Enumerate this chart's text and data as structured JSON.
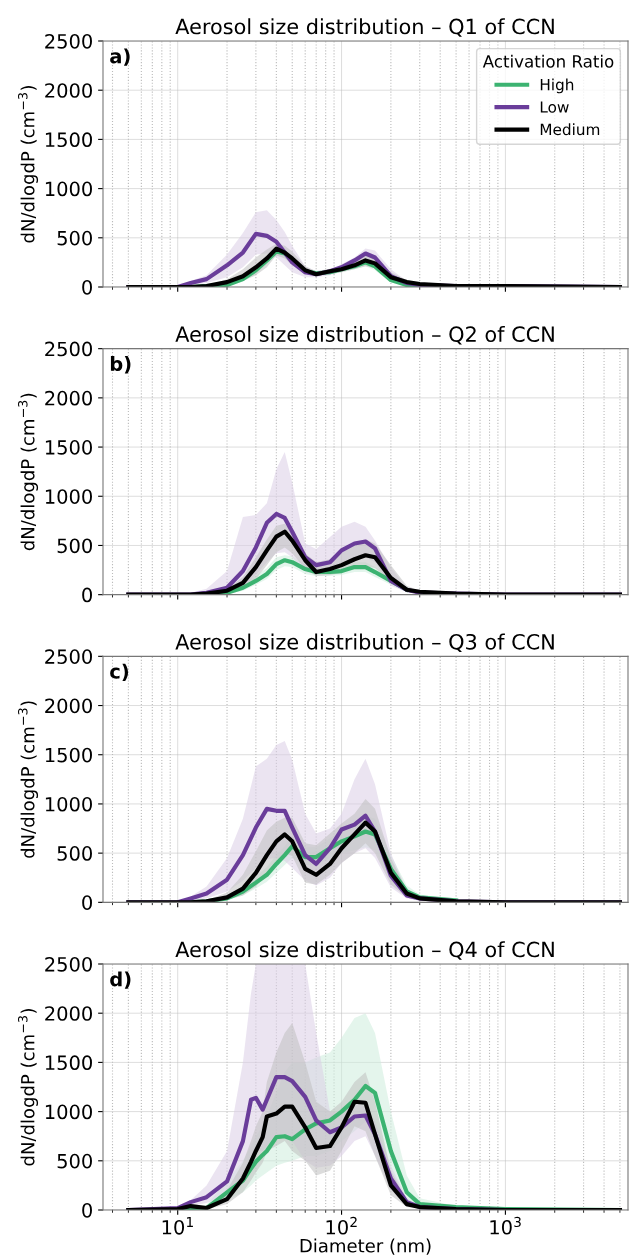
{
  "chart_data": [
    {
      "type": "line",
      "title": "Aerosol size distribution – Q1 of CCN",
      "ylabel": "dN/dlogdP (cm$^{−3}$)",
      "annotations": [
        "a)"
      ],
      "log": "x",
      "grid": true,
      "legend": "top right",
      "legend_title": "Activation Ratio",
      "tick_labels": "y",
      "line_style": "solid",
      "xlim": [
        3.5,
        5600
      ],
      "xticks": [
        10,
        100,
        1000
      ],
      "ylim": [
        0,
        2500
      ],
      "yticks": [
        0,
        500,
        1000,
        1500,
        2000,
        2500
      ],
      "x": [
        5,
        10,
        12,
        15,
        20,
        25,
        30,
        35,
        40,
        45,
        50,
        60,
        70,
        85,
        100,
        120,
        140,
        160,
        200,
        250,
        300,
        500,
        1000,
        5000
      ],
      "series": [
        {
          "name": "High",
          "color": "#3cb371",
          "values": [
            null,
            null,
            0,
            10,
            20,
            80,
            170,
            270,
            360,
            340,
            270,
            160,
            140,
            150,
            180,
            210,
            250,
            210,
            70,
            20,
            10,
            10,
            null,
            null
          ],
          "lower": [
            0,
            0,
            0,
            2,
            10,
            55,
            130,
            230,
            320,
            300,
            230,
            130,
            120,
            130,
            150,
            180,
            210,
            170,
            45,
            10,
            5,
            2,
            1,
            0
          ],
          "upper": [
            0,
            0,
            5,
            10,
            35,
            110,
            210,
            310,
            400,
            380,
            310,
            190,
            165,
            175,
            200,
            240,
            280,
            250,
            100,
            35,
            20,
            10,
            5,
            0
          ]
        },
        {
          "name": "Low",
          "color": "#6a3d9a",
          "values": [
            0,
            0,
            40,
            80,
            220,
            350,
            540,
            520,
            460,
            350,
            250,
            150,
            130,
            160,
            200,
            270,
            340,
            300,
            110,
            40,
            20,
            10,
            10,
            0
          ],
          "lower": [
            0,
            0,
            20,
            40,
            100,
            200,
            330,
            340,
            300,
            220,
            150,
            100,
            100,
            120,
            160,
            220,
            280,
            250,
            70,
            20,
            10,
            4,
            2,
            0
          ],
          "upper": [
            0,
            0,
            60,
            120,
            330,
            550,
            760,
            780,
            680,
            560,
            420,
            210,
            160,
            175,
            230,
            300,
            390,
            370,
            180,
            60,
            25,
            12,
            8,
            0
          ]
        },
        {
          "name": "Medium",
          "color": "#000000",
          "values": [
            0,
            0,
            0,
            10,
            50,
            110,
            200,
            290,
            390,
            350,
            290,
            170,
            130,
            160,
            180,
            220,
            270,
            240,
            100,
            50,
            30,
            10,
            10,
            0
          ],
          "lower": [
            0,
            0,
            0,
            2,
            20,
            60,
            120,
            200,
            320,
            290,
            220,
            130,
            110,
            130,
            150,
            180,
            210,
            190,
            60,
            25,
            15,
            5,
            2,
            0
          ],
          "upper": [
            0,
            0,
            5,
            10,
            80,
            180,
            300,
            380,
            440,
            420,
            360,
            210,
            160,
            185,
            210,
            260,
            320,
            290,
            150,
            70,
            40,
            15,
            8,
            0
          ]
        }
      ]
    },
    {
      "type": "line",
      "title": "Aerosol size distribution – Q2 of CCN",
      "ylabel": "dN/dlogdP (cm$^{−3}$)",
      "annotations": [
        "b)"
      ],
      "log": "x",
      "grid": true,
      "tick_labels": "y",
      "line_style": "solid",
      "xlim": [
        3.5,
        5600
      ],
      "xticks": [
        10,
        100,
        1000
      ],
      "ylim": [
        0,
        2500
      ],
      "yticks": [
        0,
        500,
        1000,
        1500,
        2000,
        2500
      ],
      "x": [
        5,
        10,
        12,
        15,
        20,
        25,
        30,
        35,
        40,
        45,
        50,
        60,
        70,
        85,
        100,
        120,
        140,
        160,
        200,
        250,
        300,
        500,
        1000,
        5000
      ],
      "series": [
        {
          "color": "#3cb371",
          "values": [
            null,
            null,
            null,
            0,
            20,
            70,
            140,
            210,
            310,
            350,
            330,
            260,
            230,
            230,
            240,
            280,
            280,
            230,
            140,
            50,
            null,
            null,
            null,
            null
          ],
          "lower": [
            0,
            0,
            0,
            1,
            5,
            40,
            100,
            160,
            250,
            290,
            280,
            210,
            190,
            190,
            200,
            230,
            230,
            180,
            100,
            30,
            10,
            4,
            1,
            0
          ],
          "upper": [
            0,
            0,
            2,
            8,
            30,
            110,
            190,
            270,
            380,
            400,
            390,
            310,
            270,
            270,
            290,
            330,
            330,
            280,
            190,
            80,
            30,
            12,
            5,
            0
          ]
        },
        {
          "color": "#6a3d9a",
          "values": [
            0,
            0,
            0,
            20,
            70,
            240,
            480,
            730,
            820,
            780,
            640,
            380,
            300,
            330,
            450,
            520,
            540,
            470,
            140,
            50,
            20,
            10,
            0,
            0
          ],
          "lower": [
            0,
            0,
            0,
            5,
            20,
            80,
            200,
            330,
            420,
            430,
            380,
            230,
            215,
            240,
            300,
            360,
            380,
            330,
            90,
            25,
            10,
            4,
            1,
            0
          ],
          "upper": [
            0,
            0,
            20,
            60,
            240,
            790,
            810,
            930,
            1275,
            1450,
            1140,
            520,
            465,
            585,
            690,
            740,
            690,
            550,
            275,
            70,
            25,
            12,
            4,
            0
          ]
        },
        {
          "color": "#000000",
          "values": [
            0,
            0,
            0,
            10,
            40,
            120,
            280,
            450,
            590,
            640,
            550,
            350,
            230,
            260,
            300,
            360,
            400,
            380,
            170,
            50,
            30,
            10,
            0,
            0
          ],
          "lower": [
            0,
            0,
            0,
            2,
            15,
            60,
            160,
            300,
            430,
            480,
            420,
            260,
            190,
            200,
            220,
            270,
            290,
            270,
            130,
            30,
            15,
            4,
            1,
            0
          ],
          "upper": [
            0,
            0,
            2,
            10,
            60,
            180,
            380,
            560,
            700,
            720,
            640,
            420,
            330,
            360,
            420,
            520,
            560,
            520,
            300,
            90,
            40,
            15,
            5,
            0
          ]
        }
      ]
    },
    {
      "type": "line",
      "title": "Aerosol size distribution – Q3 of CCN",
      "ylabel": "dN/dlogdP (cm$^{−3}$)",
      "annotations": [
        "c)"
      ],
      "log": "x",
      "grid": true,
      "tick_labels": "y",
      "line_style": "solid",
      "xlim": [
        3.5,
        5600
      ],
      "xticks": [
        10,
        100,
        1000
      ],
      "ylim": [
        0,
        2500
      ],
      "yticks": [
        0,
        500,
        1000,
        1500,
        2000,
        2500
      ],
      "x": [
        5,
        10,
        12,
        15,
        20,
        25,
        30,
        35,
        40,
        45,
        50,
        60,
        70,
        85,
        100,
        120,
        140,
        160,
        200,
        250,
        300,
        500,
        1000,
        5000
      ],
      "series": [
        {
          "color": "#3cb371",
          "values": [
            null,
            null,
            0,
            10,
            40,
            110,
            200,
            280,
            390,
            480,
            570,
            460,
            460,
            550,
            620,
            670,
            720,
            690,
            340,
            110,
            50,
            20,
            null,
            null
          ],
          "lower": [
            0,
            0,
            1,
            2,
            20,
            70,
            140,
            210,
            300,
            380,
            450,
            380,
            380,
            450,
            500,
            530,
            560,
            530,
            230,
            60,
            25,
            8,
            2,
            0
          ],
          "upper": [
            0,
            0,
            4,
            10,
            55,
            150,
            260,
            360,
            480,
            570,
            680,
            560,
            560,
            650,
            730,
            800,
            880,
            850,
            480,
            170,
            80,
            30,
            8,
            0
          ]
        },
        {
          "color": "#6a3d9a",
          "values": [
            0,
            0,
            40,
            90,
            230,
            480,
            760,
            950,
            930,
            930,
            760,
            480,
            390,
            550,
            740,
            790,
            880,
            720,
            270,
            70,
            40,
            10,
            0,
            0
          ],
          "lower": [
            0,
            0,
            15,
            40,
            110,
            220,
            350,
            440,
            450,
            420,
            350,
            220,
            170,
            250,
            400,
            500,
            550,
            450,
            150,
            40,
            15,
            5,
            1,
            0
          ],
          "upper": [
            0,
            0,
            60,
            160,
            450,
            850,
            1380,
            1460,
            1600,
            1640,
            1450,
            900,
            700,
            750,
            900,
            1250,
            1460,
            1200,
            500,
            120,
            40,
            12,
            4,
            0
          ]
        },
        {
          "color": "#000000",
          "values": [
            0,
            0,
            0,
            10,
            50,
            140,
            300,
            480,
            620,
            690,
            620,
            340,
            280,
            390,
            550,
            690,
            810,
            720,
            300,
            90,
            40,
            10,
            0,
            0
          ],
          "lower": [
            0,
            0,
            1,
            3,
            25,
            70,
            160,
            280,
            420,
            500,
            470,
            200,
            180,
            280,
            400,
            500,
            600,
            500,
            180,
            50,
            20,
            5,
            1,
            0
          ],
          "upper": [
            0,
            0,
            6,
            20,
            100,
            280,
            520,
            730,
            820,
            860,
            860,
            600,
            580,
            700,
            800,
            900,
            1050,
            950,
            450,
            130,
            50,
            15,
            5,
            0
          ]
        }
      ]
    },
    {
      "type": "line",
      "title": "Aerosol size distribution – Q4 of CCN",
      "xlabel": "Diameter (nm)",
      "ylabel": "dN/dlogdP (cm$^{−3}$)",
      "annotations": [
        "d)"
      ],
      "log": "x",
      "grid": true,
      "line_style": "solid",
      "xlim": [
        3.5,
        5600
      ],
      "xticks": [
        {
          "value": 10,
          "label": "10$^{1}$"
        },
        {
          "value": 100,
          "label": "10$^{2}$"
        },
        {
          "value": 1000,
          "label": "10$^{3}$"
        }
      ],
      "ylim": [
        0,
        2500
      ],
      "yticks": [
        0,
        500,
        1000,
        1500,
        2000,
        2500
      ],
      "x": [
        5,
        10,
        12,
        15,
        20,
        25,
        28,
        30,
        33,
        35,
        40,
        45,
        50,
        60,
        70,
        85,
        100,
        120,
        140,
        160,
        200,
        250,
        300,
        500,
        1000,
        5000
      ],
      "series": [
        {
          "color": "#3cb371",
          "values": [
            0,
            0,
            10,
            20,
            180,
            300,
            420,
            490,
            560,
            600,
            740,
            750,
            720,
            820,
            880,
            910,
            1000,
            1120,
            1260,
            1190,
            600,
            180,
            60,
            30,
            10,
            0
          ],
          "lower": [
            0,
            0,
            2,
            5,
            100,
            180,
            250,
            300,
            350,
            380,
            450,
            480,
            500,
            550,
            550,
            600,
            700,
            800,
            900,
            800,
            350,
            80,
            25,
            10,
            2,
            0
          ],
          "upper": [
            0,
            2,
            15,
            50,
            300,
            500,
            650,
            750,
            850,
            950,
            1200,
            1400,
            1500,
            1500,
            1550,
            1600,
            1750,
            1950,
            2000,
            1800,
            1000,
            350,
            120,
            40,
            8,
            0
          ]
        },
        {
          "color": "#6a3d9a",
          "values": [
            0,
            20,
            80,
            130,
            290,
            700,
            1120,
            1140,
            1020,
            1120,
            1350,
            1350,
            1310,
            1150,
            910,
            790,
            840,
            950,
            960,
            770,
            320,
            80,
            30,
            10,
            0,
            0
          ],
          "lower": [
            0,
            5,
            40,
            70,
            150,
            350,
            550,
            600,
            600,
            650,
            750,
            780,
            700,
            500,
            430,
            450,
            550,
            700,
            750,
            550,
            200,
            40,
            15,
            5,
            1,
            0
          ],
          "upper": [
            0,
            20,
            100,
            250,
            600,
            1500,
            2200,
            2500,
            2500,
            2500,
            2500,
            2500,
            2500,
            2500,
            1800,
            1000,
            980,
            1100,
            1050,
            900,
            450,
            120,
            40,
            10,
            3,
            0
          ]
        },
        {
          "color": "#000000",
          "values": [
            0,
            10,
            40,
            20,
            110,
            320,
            490,
            600,
            740,
            950,
            980,
            1050,
            1050,
            840,
            630,
            650,
            840,
            1100,
            1090,
            770,
            250,
            60,
            30,
            10,
            0,
            0
          ],
          "lower": [
            0,
            2,
            20,
            5,
            60,
            180,
            300,
            380,
            480,
            600,
            650,
            700,
            600,
            500,
            350,
            400,
            600,
            850,
            800,
            550,
            150,
            30,
            10,
            5,
            1,
            0
          ],
          "upper": [
            0,
            10,
            60,
            40,
            200,
            480,
            700,
            850,
            1000,
            1300,
            1600,
            1800,
            1900,
            1500,
            1100,
            1000,
            1100,
            1300,
            1400,
            1100,
            400,
            100,
            40,
            15,
            5,
            0
          ]
        }
      ]
    }
  ]
}
